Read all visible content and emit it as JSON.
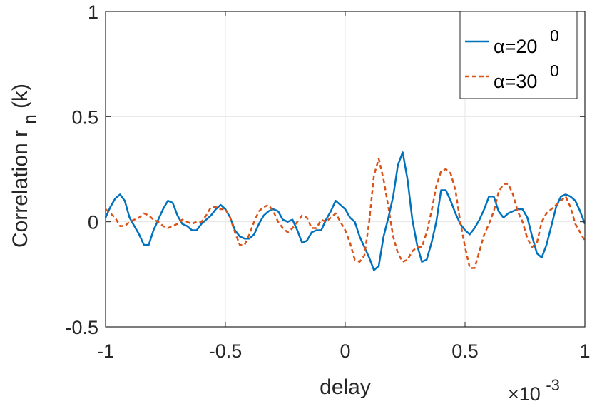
{
  "chart_data": {
    "type": "line",
    "xlabel": "delay",
    "x_exponent": {
      "base": "×10",
      "power": "-3"
    },
    "ylabel_main": "Correlation r",
    "ylabel_sub": "n",
    "ylabel_tail": "(k)",
    "xlim": [
      -1,
      1
    ],
    "ylim": [
      -0.5,
      1
    ],
    "xticks": [
      -1,
      -0.5,
      0,
      0.5,
      1
    ],
    "xtick_labels": [
      "-1",
      "-0.5",
      "0",
      "0.5",
      "1"
    ],
    "yticks": [
      -0.5,
      0,
      0.5,
      1
    ],
    "ytick_labels": [
      "-0.5",
      "0",
      "0.5",
      "1"
    ],
    "grid": true,
    "legend_position": "top-right",
    "series": [
      {
        "name": "α=20",
        "legend_sup": "0",
        "color": "#0072BD",
        "style": "solid",
        "points": [
          [
            -1.0,
            0.02
          ],
          [
            -0.98,
            0.07
          ],
          [
            -0.96,
            0.11
          ],
          [
            -0.94,
            0.13
          ],
          [
            -0.92,
            0.1
          ],
          [
            -0.9,
            0.02
          ],
          [
            -0.88,
            -0.02
          ],
          [
            -0.86,
            -0.06
          ],
          [
            -0.84,
            -0.11
          ],
          [
            -0.82,
            -0.11
          ],
          [
            -0.8,
            -0.04
          ],
          [
            -0.78,
            0.01
          ],
          [
            -0.76,
            0.06
          ],
          [
            -0.74,
            0.1
          ],
          [
            -0.72,
            0.09
          ],
          [
            -0.7,
            0.03
          ],
          [
            -0.68,
            -0.01
          ],
          [
            -0.66,
            -0.02
          ],
          [
            -0.64,
            -0.04
          ],
          [
            -0.62,
            -0.04
          ],
          [
            -0.6,
            -0.01
          ],
          [
            -0.58,
            0.01
          ],
          [
            -0.56,
            0.03
          ],
          [
            -0.54,
            0.06
          ],
          [
            -0.52,
            0.08
          ],
          [
            -0.5,
            0.06
          ],
          [
            -0.48,
            0.02
          ],
          [
            -0.46,
            -0.04
          ],
          [
            -0.44,
            -0.07
          ],
          [
            -0.42,
            -0.08
          ],
          [
            -0.4,
            -0.08
          ],
          [
            -0.38,
            -0.06
          ],
          [
            -0.36,
            -0.01
          ],
          [
            -0.34,
            0.03
          ],
          [
            -0.32,
            0.05
          ],
          [
            -0.3,
            0.06
          ],
          [
            -0.28,
            0.05
          ],
          [
            -0.26,
            0.01
          ],
          [
            -0.24,
            0.0
          ],
          [
            -0.22,
            0.01
          ],
          [
            -0.2,
            -0.04
          ],
          [
            -0.18,
            -0.1
          ],
          [
            -0.16,
            -0.09
          ],
          [
            -0.14,
            -0.05
          ],
          [
            -0.12,
            -0.04
          ],
          [
            -0.1,
            -0.04
          ],
          [
            -0.08,
            0.01
          ],
          [
            -0.06,
            0.05
          ],
          [
            -0.04,
            0.1
          ],
          [
            -0.02,
            0.08
          ],
          [
            0.0,
            0.06
          ],
          [
            0.02,
            0.02
          ],
          [
            0.04,
            0.0
          ],
          [
            0.06,
            -0.07
          ],
          [
            0.08,
            -0.12
          ],
          [
            0.1,
            -0.17
          ],
          [
            0.12,
            -0.23
          ],
          [
            0.14,
            -0.21
          ],
          [
            0.16,
            -0.07
          ],
          [
            0.18,
            0.02
          ],
          [
            0.2,
            0.12
          ],
          [
            0.22,
            0.27
          ],
          [
            0.24,
            0.33
          ],
          [
            0.26,
            0.2
          ],
          [
            0.28,
            0.01
          ],
          [
            0.3,
            -0.11
          ],
          [
            0.32,
            -0.19
          ],
          [
            0.34,
            -0.18
          ],
          [
            0.36,
            -0.1
          ],
          [
            0.38,
            0.0
          ],
          [
            0.4,
            0.15
          ],
          [
            0.42,
            0.15
          ],
          [
            0.44,
            0.1
          ],
          [
            0.46,
            0.04
          ],
          [
            0.48,
            -0.01
          ],
          [
            0.5,
            -0.04
          ],
          [
            0.52,
            -0.06
          ],
          [
            0.54,
            -0.03
          ],
          [
            0.56,
            0.01
          ],
          [
            0.58,
            0.06
          ],
          [
            0.6,
            0.12
          ],
          [
            0.62,
            0.12
          ],
          [
            0.64,
            0.05
          ],
          [
            0.66,
            0.02
          ],
          [
            0.68,
            0.04
          ],
          [
            0.7,
            0.05
          ],
          [
            0.72,
            0.06
          ],
          [
            0.74,
            0.06
          ],
          [
            0.76,
            0.02
          ],
          [
            0.78,
            -0.07
          ],
          [
            0.8,
            -0.15
          ],
          [
            0.82,
            -0.17
          ],
          [
            0.84,
            -0.11
          ],
          [
            0.86,
            -0.02
          ],
          [
            0.88,
            0.07
          ],
          [
            0.9,
            0.12
          ],
          [
            0.92,
            0.13
          ],
          [
            0.94,
            0.12
          ],
          [
            0.96,
            0.1
          ],
          [
            0.98,
            0.05
          ],
          [
            1.0,
            -0.01
          ]
        ]
      },
      {
        "name": "α=30",
        "legend_sup": "0",
        "color": "#D95319",
        "style": "dashed",
        "points": [
          [
            -1.0,
            0.06
          ],
          [
            -0.98,
            0.04
          ],
          [
            -0.96,
            0.02
          ],
          [
            -0.94,
            -0.02
          ],
          [
            -0.92,
            -0.02
          ],
          [
            -0.9,
            0.0
          ],
          [
            -0.88,
            0.01
          ],
          [
            -0.86,
            0.02
          ],
          [
            -0.84,
            0.04
          ],
          [
            -0.82,
            0.03
          ],
          [
            -0.8,
            0.01
          ],
          [
            -0.78,
            0.0
          ],
          [
            -0.76,
            -0.02
          ],
          [
            -0.74,
            -0.03
          ],
          [
            -0.72,
            -0.02
          ],
          [
            -0.7,
            -0.01
          ],
          [
            -0.68,
            0.01
          ],
          [
            -0.66,
            0.0
          ],
          [
            -0.64,
            -0.01
          ],
          [
            -0.62,
            0.0
          ],
          [
            -0.6,
            0.0
          ],
          [
            -0.58,
            0.03
          ],
          [
            -0.56,
            0.07
          ],
          [
            -0.54,
            0.07
          ],
          [
            -0.52,
            0.06
          ],
          [
            -0.5,
            0.06
          ],
          [
            -0.48,
            0.02
          ],
          [
            -0.46,
            -0.05
          ],
          [
            -0.44,
            -0.11
          ],
          [
            -0.42,
            -0.11
          ],
          [
            -0.4,
            -0.06
          ],
          [
            -0.38,
            0.0
          ],
          [
            -0.36,
            0.05
          ],
          [
            -0.34,
            0.07
          ],
          [
            -0.32,
            0.08
          ],
          [
            -0.3,
            0.05
          ],
          [
            -0.28,
            0.0
          ],
          [
            -0.26,
            -0.03
          ],
          [
            -0.24,
            -0.05
          ],
          [
            -0.22,
            -0.03
          ],
          [
            -0.2,
            0.0
          ],
          [
            -0.18,
            0.03
          ],
          [
            -0.16,
            0.02
          ],
          [
            -0.14,
            -0.03
          ],
          [
            -0.12,
            -0.03
          ],
          [
            -0.1,
            0.01
          ],
          [
            -0.08,
            0.0
          ],
          [
            -0.06,
            0.02
          ],
          [
            -0.04,
            0.04
          ],
          [
            -0.02,
            0.0
          ],
          [
            0.0,
            -0.04
          ],
          [
            0.02,
            -0.1
          ],
          [
            0.04,
            -0.18
          ],
          [
            0.06,
            -0.19
          ],
          [
            0.08,
            -0.16
          ],
          [
            0.1,
            0.0
          ],
          [
            0.12,
            0.22
          ],
          [
            0.14,
            0.3
          ],
          [
            0.16,
            0.2
          ],
          [
            0.18,
            0.07
          ],
          [
            0.2,
            -0.07
          ],
          [
            0.22,
            -0.15
          ],
          [
            0.24,
            -0.19
          ],
          [
            0.26,
            -0.18
          ],
          [
            0.28,
            -0.14
          ],
          [
            0.3,
            -0.12
          ],
          [
            0.32,
            -0.12
          ],
          [
            0.34,
            -0.05
          ],
          [
            0.36,
            0.05
          ],
          [
            0.38,
            0.17
          ],
          [
            0.4,
            0.24
          ],
          [
            0.42,
            0.25
          ],
          [
            0.44,
            0.23
          ],
          [
            0.46,
            0.15
          ],
          [
            0.48,
            0.0
          ],
          [
            0.5,
            -0.12
          ],
          [
            0.52,
            -0.22
          ],
          [
            0.54,
            -0.22
          ],
          [
            0.56,
            -0.14
          ],
          [
            0.58,
            -0.06
          ],
          [
            0.6,
            -0.01
          ],
          [
            0.62,
            0.05
          ],
          [
            0.64,
            0.14
          ],
          [
            0.66,
            0.18
          ],
          [
            0.68,
            0.18
          ],
          [
            0.7,
            0.13
          ],
          [
            0.72,
            0.05
          ],
          [
            0.74,
            0.0
          ],
          [
            0.76,
            -0.08
          ],
          [
            0.78,
            -0.12
          ],
          [
            0.8,
            -0.1
          ],
          [
            0.82,
            0.0
          ],
          [
            0.84,
            0.04
          ],
          [
            0.86,
            0.06
          ],
          [
            0.88,
            0.08
          ],
          [
            0.9,
            0.1
          ],
          [
            0.92,
            0.12
          ],
          [
            0.94,
            0.07
          ],
          [
            0.96,
            -0.01
          ],
          [
            0.98,
            -0.05
          ],
          [
            1.0,
            -0.09
          ]
        ]
      }
    ]
  }
}
